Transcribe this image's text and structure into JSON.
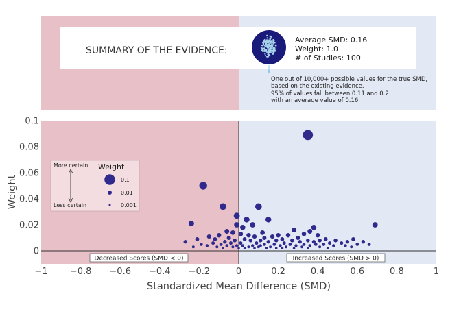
{
  "summary": {
    "title": "SUMMARY OF THE EVIDENCE:",
    "stats": [
      "Average SMD: 0.16",
      "Weight: 1.0",
      "# of Studies: 100"
    ],
    "note": [
      "One out of 10,000+ possible values for the true SMD,",
      "based on the existing evidence.",
      "95% of values fall between 0.11 and 0.2",
      "with an average value of 0.16."
    ]
  },
  "legend": {
    "title": "Weight",
    "more_certain": "More certain",
    "less_certain": "Less certain",
    "entries": [
      {
        "label": "0.1",
        "weight": 0.1
      },
      {
        "label": "0.01",
        "weight": 0.01
      },
      {
        "label": "0.001",
        "weight": 0.001
      }
    ]
  },
  "regions": {
    "decreased": "Decreased Scores (SMD < 0)",
    "increased": "Increased Scores (SMD > 0)"
  },
  "colors": {
    "negative_region": "#e8c0c8",
    "positive_region": "#e2e8f4",
    "point": "#2f2a8c",
    "summary_disc": "#1a1a7a",
    "summary_dots": "#a9d4ec"
  },
  "chart_data": {
    "type": "scatter",
    "xlabel": "Standardized Mean Difference (SMD)",
    "ylabel": "Weight",
    "xlim": [
      -1,
      1
    ],
    "ylim": [
      -0.01,
      0.1
    ],
    "x_ticks": [
      -1,
      -0.8,
      -0.6,
      -0.4,
      -0.2,
      0,
      0.2,
      0.4,
      0.6,
      0.8,
      1
    ],
    "x_tick_labels": [
      "−1",
      "−0.8",
      "−0.6",
      "−0.4",
      "−0.2",
      "0",
      "0.2",
      "0.4",
      "0.6",
      "0.8",
      "1"
    ],
    "y_ticks": [
      0,
      0.02,
      0.04,
      0.06,
      0.08,
      0.1
    ],
    "y_tick_labels": [
      "0",
      "0.02",
      "0.04",
      "0.06",
      "0.08",
      "0.1"
    ],
    "grid": false,
    "points": [
      {
        "x": 0.35,
        "y": 0.089
      },
      {
        "x": -0.18,
        "y": 0.05
      },
      {
        "x": -0.08,
        "y": 0.034
      },
      {
        "x": 0.1,
        "y": 0.034
      },
      {
        "x": -0.01,
        "y": 0.027
      },
      {
        "x": 0.04,
        "y": 0.024
      },
      {
        "x": 0.15,
        "y": 0.024
      },
      {
        "x": -0.24,
        "y": 0.021
      },
      {
        "x": -0.01,
        "y": 0.02
      },
      {
        "x": 0.02,
        "y": 0.018
      },
      {
        "x": 0.07,
        "y": 0.02
      },
      {
        "x": 0.69,
        "y": 0.02
      },
      {
        "x": 0.38,
        "y": 0.018
      },
      {
        "x": 0.28,
        "y": 0.016
      },
      {
        "x": 0.36,
        "y": 0.015
      },
      {
        "x": 0.12,
        "y": 0.014
      },
      {
        "x": -0.06,
        "y": 0.015
      },
      {
        "x": -0.03,
        "y": 0.014
      },
      {
        "x": 0.01,
        "y": 0.013
      },
      {
        "x": 0.05,
        "y": 0.012
      },
      {
        "x": 0.2,
        "y": 0.012
      },
      {
        "x": 0.25,
        "y": 0.012
      },
      {
        "x": 0.33,
        "y": 0.013
      },
      {
        "x": 0.4,
        "y": 0.012
      },
      {
        "x": -0.1,
        "y": 0.012
      },
      {
        "x": -0.15,
        "y": 0.011
      },
      {
        "x": 0.08,
        "y": 0.011
      },
      {
        "x": 0.13,
        "y": 0.01
      },
      {
        "x": 0.17,
        "y": 0.011
      },
      {
        "x": 0.3,
        "y": 0.01
      },
      {
        "x": -0.05,
        "y": 0.01
      },
      {
        "x": 0.22,
        "y": 0.009
      },
      {
        "x": 0.03,
        "y": 0.009
      },
      {
        "x": 0.44,
        "y": 0.009
      },
      {
        "x": -0.12,
        "y": 0.009
      },
      {
        "x": 0.58,
        "y": 0.009
      },
      {
        "x": -0.21,
        "y": 0.009
      },
      {
        "x": 0.35,
        "y": 0.008
      },
      {
        "x": 0.27,
        "y": 0.008
      },
      {
        "x": 0.11,
        "y": 0.008
      },
      {
        "x": -0.02,
        "y": 0.008
      },
      {
        "x": 0.06,
        "y": 0.008
      },
      {
        "x": 0.19,
        "y": 0.008
      },
      {
        "x": 0.41,
        "y": 0.008
      },
      {
        "x": 0.49,
        "y": 0.008
      },
      {
        "x": 0.55,
        "y": 0.007
      },
      {
        "x": 0.63,
        "y": 0.007
      },
      {
        "x": -0.07,
        "y": 0.007
      },
      {
        "x": -0.27,
        "y": 0.007
      },
      {
        "x": 0.15,
        "y": 0.007
      },
      {
        "x": 0.31,
        "y": 0.007
      },
      {
        "x": 0.38,
        "y": 0.007
      },
      {
        "x": 0.01,
        "y": 0.006
      },
      {
        "x": 0.09,
        "y": 0.006
      },
      {
        "x": 0.23,
        "y": 0.006
      },
      {
        "x": 0.46,
        "y": 0.006
      },
      {
        "x": 0.52,
        "y": 0.006
      },
      {
        "x": -0.13,
        "y": 0.006
      },
      {
        "x": -0.04,
        "y": 0.006
      },
      {
        "x": 0.13,
        "y": 0.005
      },
      {
        "x": 0.18,
        "y": 0.005
      },
      {
        "x": 0.26,
        "y": 0.005
      },
      {
        "x": 0.33,
        "y": 0.005
      },
      {
        "x": 0.39,
        "y": 0.005
      },
      {
        "x": 0.43,
        "y": 0.005
      },
      {
        "x": 0.6,
        "y": 0.005
      },
      {
        "x": 0.66,
        "y": 0.005
      },
      {
        "x": -0.09,
        "y": 0.005
      },
      {
        "x": -0.19,
        "y": 0.005
      },
      {
        "x": 0.02,
        "y": 0.004
      },
      {
        "x": 0.07,
        "y": 0.004
      },
      {
        "x": 0.11,
        "y": 0.004
      },
      {
        "x": 0.21,
        "y": 0.004
      },
      {
        "x": 0.29,
        "y": 0.004
      },
      {
        "x": 0.36,
        "y": 0.004
      },
      {
        "x": 0.48,
        "y": 0.004
      },
      {
        "x": 0.54,
        "y": 0.004
      },
      {
        "x": -0.01,
        "y": 0.004
      },
      {
        "x": -0.06,
        "y": 0.004
      },
      {
        "x": -0.16,
        "y": 0.004
      },
      {
        "x": 0.16,
        "y": 0.003
      },
      {
        "x": 0.24,
        "y": 0.003
      },
      {
        "x": 0.32,
        "y": 0.003
      },
      {
        "x": 0.41,
        "y": 0.003
      },
      {
        "x": 0.05,
        "y": 0.003
      },
      {
        "x": -0.11,
        "y": 0.003
      },
      {
        "x": -0.03,
        "y": 0.003
      },
      {
        "x": 0.1,
        "y": 0.003
      },
      {
        "x": 0.28,
        "y": 0.002
      },
      {
        "x": 0.45,
        "y": 0.002
      },
      {
        "x": 0.19,
        "y": 0.002
      },
      {
        "x": -0.08,
        "y": 0.002
      },
      {
        "x": 0.0,
        "y": 0.002
      },
      {
        "x": 0.35,
        "y": 0.002
      },
      {
        "x": 0.14,
        "y": 0.002
      },
      {
        "x": 0.08,
        "y": 0.002
      },
      {
        "x": 0.57,
        "y": 0.003
      },
      {
        "x": -0.23,
        "y": 0.003
      },
      {
        "x": 0.03,
        "y": 0.002
      },
      {
        "x": 0.22,
        "y": 0.002
      }
    ]
  }
}
